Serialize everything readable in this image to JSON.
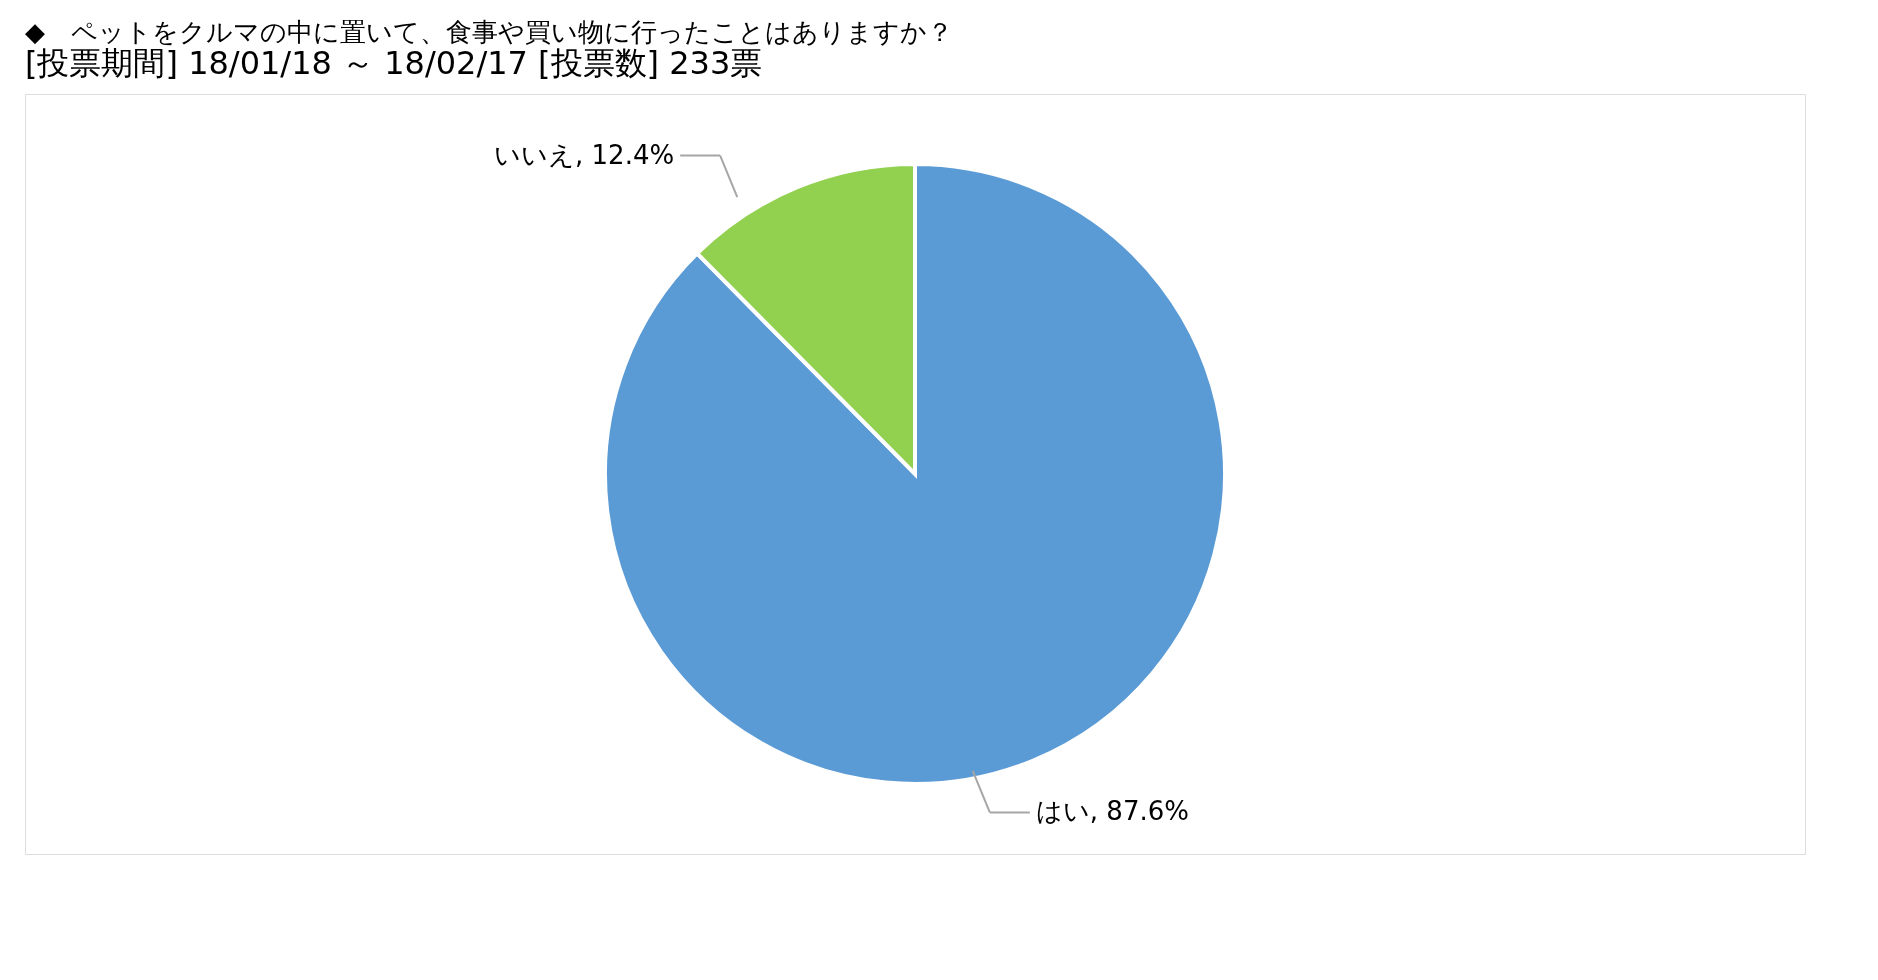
{
  "chart_data": {
    "type": "pie",
    "title": "◆　ペットをクルマの中に置いて、食事や買い物に行ったことはありますか？",
    "subtitle": "[投票期間] 18/01/18 ～ 18/02/17 [投票数] 233票",
    "categories": [
      "はい",
      "いいえ"
    ],
    "values": [
      87.6,
      12.4
    ],
    "colors": [
      "#5b9bd5",
      "#92d050"
    ],
    "value_labels": [
      "87.6%",
      "12.4%"
    ],
    "legend": false
  }
}
